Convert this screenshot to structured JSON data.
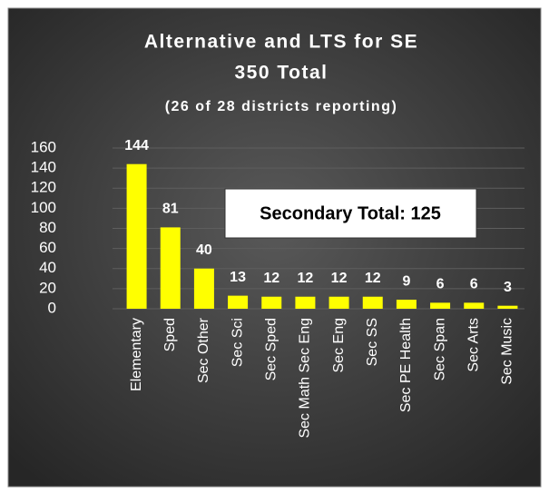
{
  "chart_data": {
    "type": "bar",
    "title": "Alternative and LTS for SE",
    "subtitle": "350 Total",
    "note": "(26 of 28 districts reporting)",
    "annotation": "Secondary Total: 125",
    "categories": [
      "Elementary",
      "Sped",
      "Sec Other",
      "Sec Sci",
      "Sec Sped",
      "Sec Math Sec Eng",
      "Sec Eng",
      "Sec SS",
      "Sec PE Health",
      "Sec Span",
      "Sec Arts",
      "Sec Music"
    ],
    "values": [
      144,
      81,
      40,
      13,
      12,
      12,
      12,
      12,
      9,
      6,
      6,
      3
    ],
    "color": "#ffff00",
    "ylim": [
      0,
      160
    ],
    "yticks": [
      0,
      20,
      40,
      60,
      80,
      100,
      120,
      140,
      160
    ],
    "grid": true
  }
}
